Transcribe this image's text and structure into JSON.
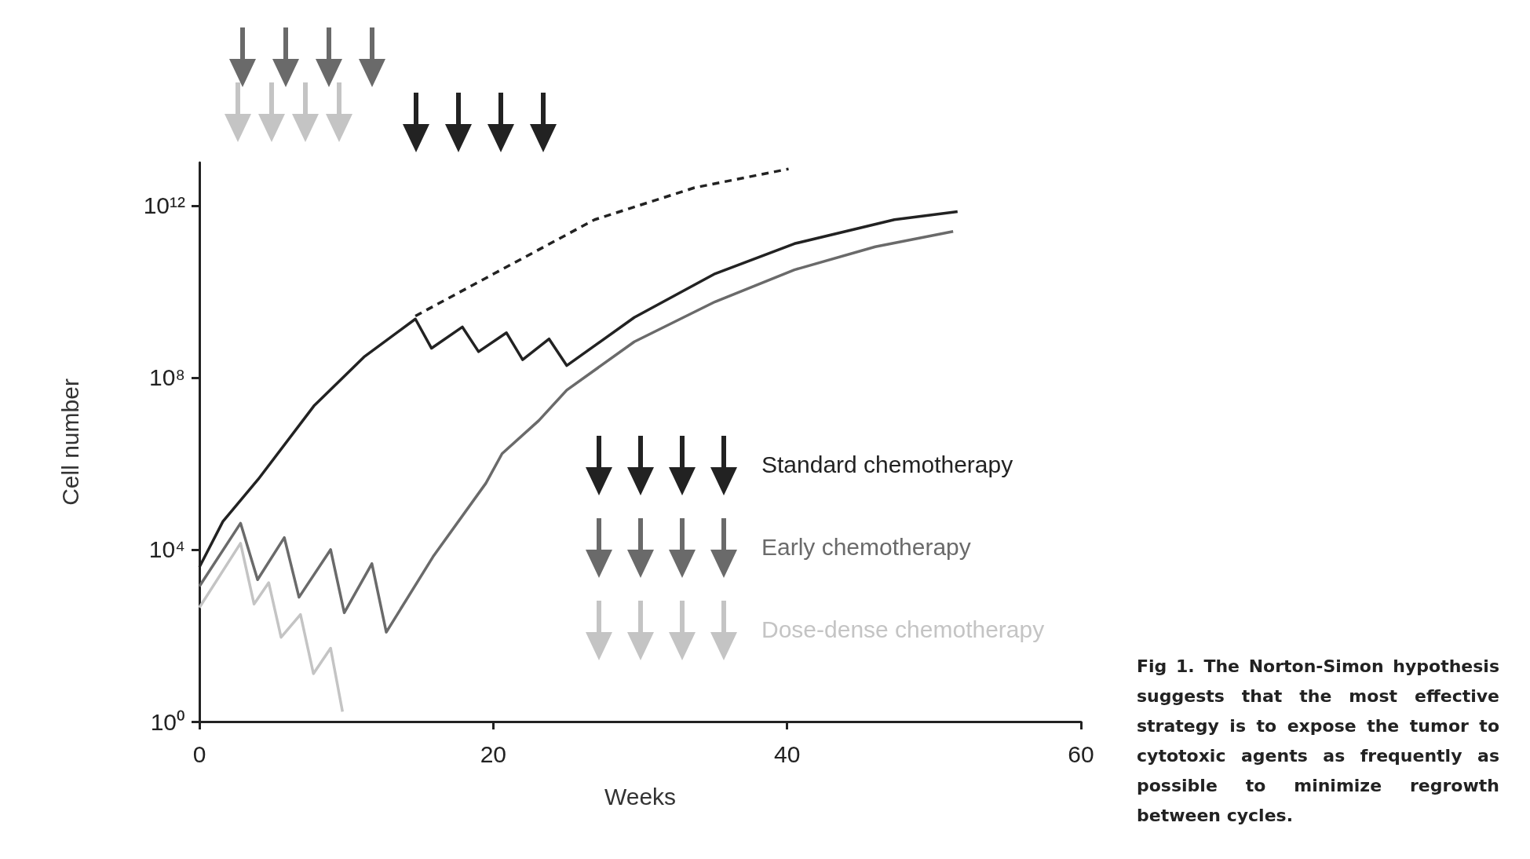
{
  "chart_data": {
    "type": "line",
    "xlabel": "Weeks",
    "ylabel": "Cell number",
    "xlim": [
      0,
      60
    ],
    "xticks": [
      0,
      20,
      40,
      60
    ],
    "ylim": [
      1,
      10000000000000.0
    ],
    "yticks": [
      {
        "value": 1,
        "label": "10⁰"
      },
      {
        "value": 10000.0,
        "label": "10⁴"
      },
      {
        "value": 100000000.0,
        "label": "10⁸"
      },
      {
        "value": 1000000000000.0,
        "label": "10¹²"
      }
    ],
    "log": "y",
    "grid": false,
    "legend": "right",
    "marker": "none",
    "series": [
      {
        "name": "Standard chemotherapy",
        "color": "#222222",
        "line_style": "solid",
        "x": [
          0,
          1.6,
          4.0,
          7.8,
          11.2,
          14.7,
          15.8,
          17.9,
          19.0,
          20.9,
          22.0,
          23.8,
          25.0,
          29.6,
          35.1,
          40.5,
          47.3,
          51.6
        ],
        "values": [
          3900.0,
          45000.0,
          430000.0,
          22000000.0,
          300000000.0,
          2300000000.0,
          480000000.0,
          1500000000.0,
          400000000.0,
          1100000000.0,
          260000000.0,
          790000000.0,
          190000000.0,
          2500000000.0,
          26000000000.0,
          130000000000.0,
          470000000000.0,
          720000000000.0
        ]
      },
      {
        "name": "Early chemotherapy",
        "color": "#6a6a6a",
        "line_style": "solid",
        "x": [
          0,
          2.8,
          3.96,
          5.78,
          6.78,
          8.93,
          9.86,
          11.74,
          12.72,
          15.9,
          19.5,
          20.6,
          23.1,
          25.0,
          29.6,
          35.1,
          40.5,
          46.0,
          51.3
        ],
        "values": [
          1400.0,
          41000.0,
          2000.0,
          19000.0,
          780.0,
          10000.0,
          340.0,
          4700.0,
          120.0,
          6800.0,
          350000.0,
          1700000.0,
          10000000.0,
          51000000.0,
          680000000.0,
          5800000000.0,
          32000000000.0,
          110000000000.0,
          250000000000.0
        ]
      },
      {
        "name": "Dose-dense chemotherapy",
        "color": "#c4c4c4",
        "line_style": "solid",
        "x": [
          0,
          2.8,
          3.72,
          4.72,
          5.56,
          6.88,
          7.76,
          8.93,
          9.74
        ],
        "values": [
          450.0,
          14000.0,
          540.0,
          1700.0,
          91,
          310.0,
          13,
          51,
          1.7
        ]
      },
      {
        "color": "#222222",
        "line_style": "dashed",
        "x": [
          14.7,
          20.05,
          26.9,
          33.7,
          40.1
        ],
        "values": [
          2700000000.0,
          26000000000.0,
          470000000000.0,
          2600000000000.0,
          7100000000000.0
        ]
      }
    ],
    "annotations": [
      "Fig 1.   The Norton-Simon hypothesis suggests that the most effective strategy is to expose the tumor to cytotoxic agents as frequently as possible to minimize regrowth between cycles."
    ]
  }
}
